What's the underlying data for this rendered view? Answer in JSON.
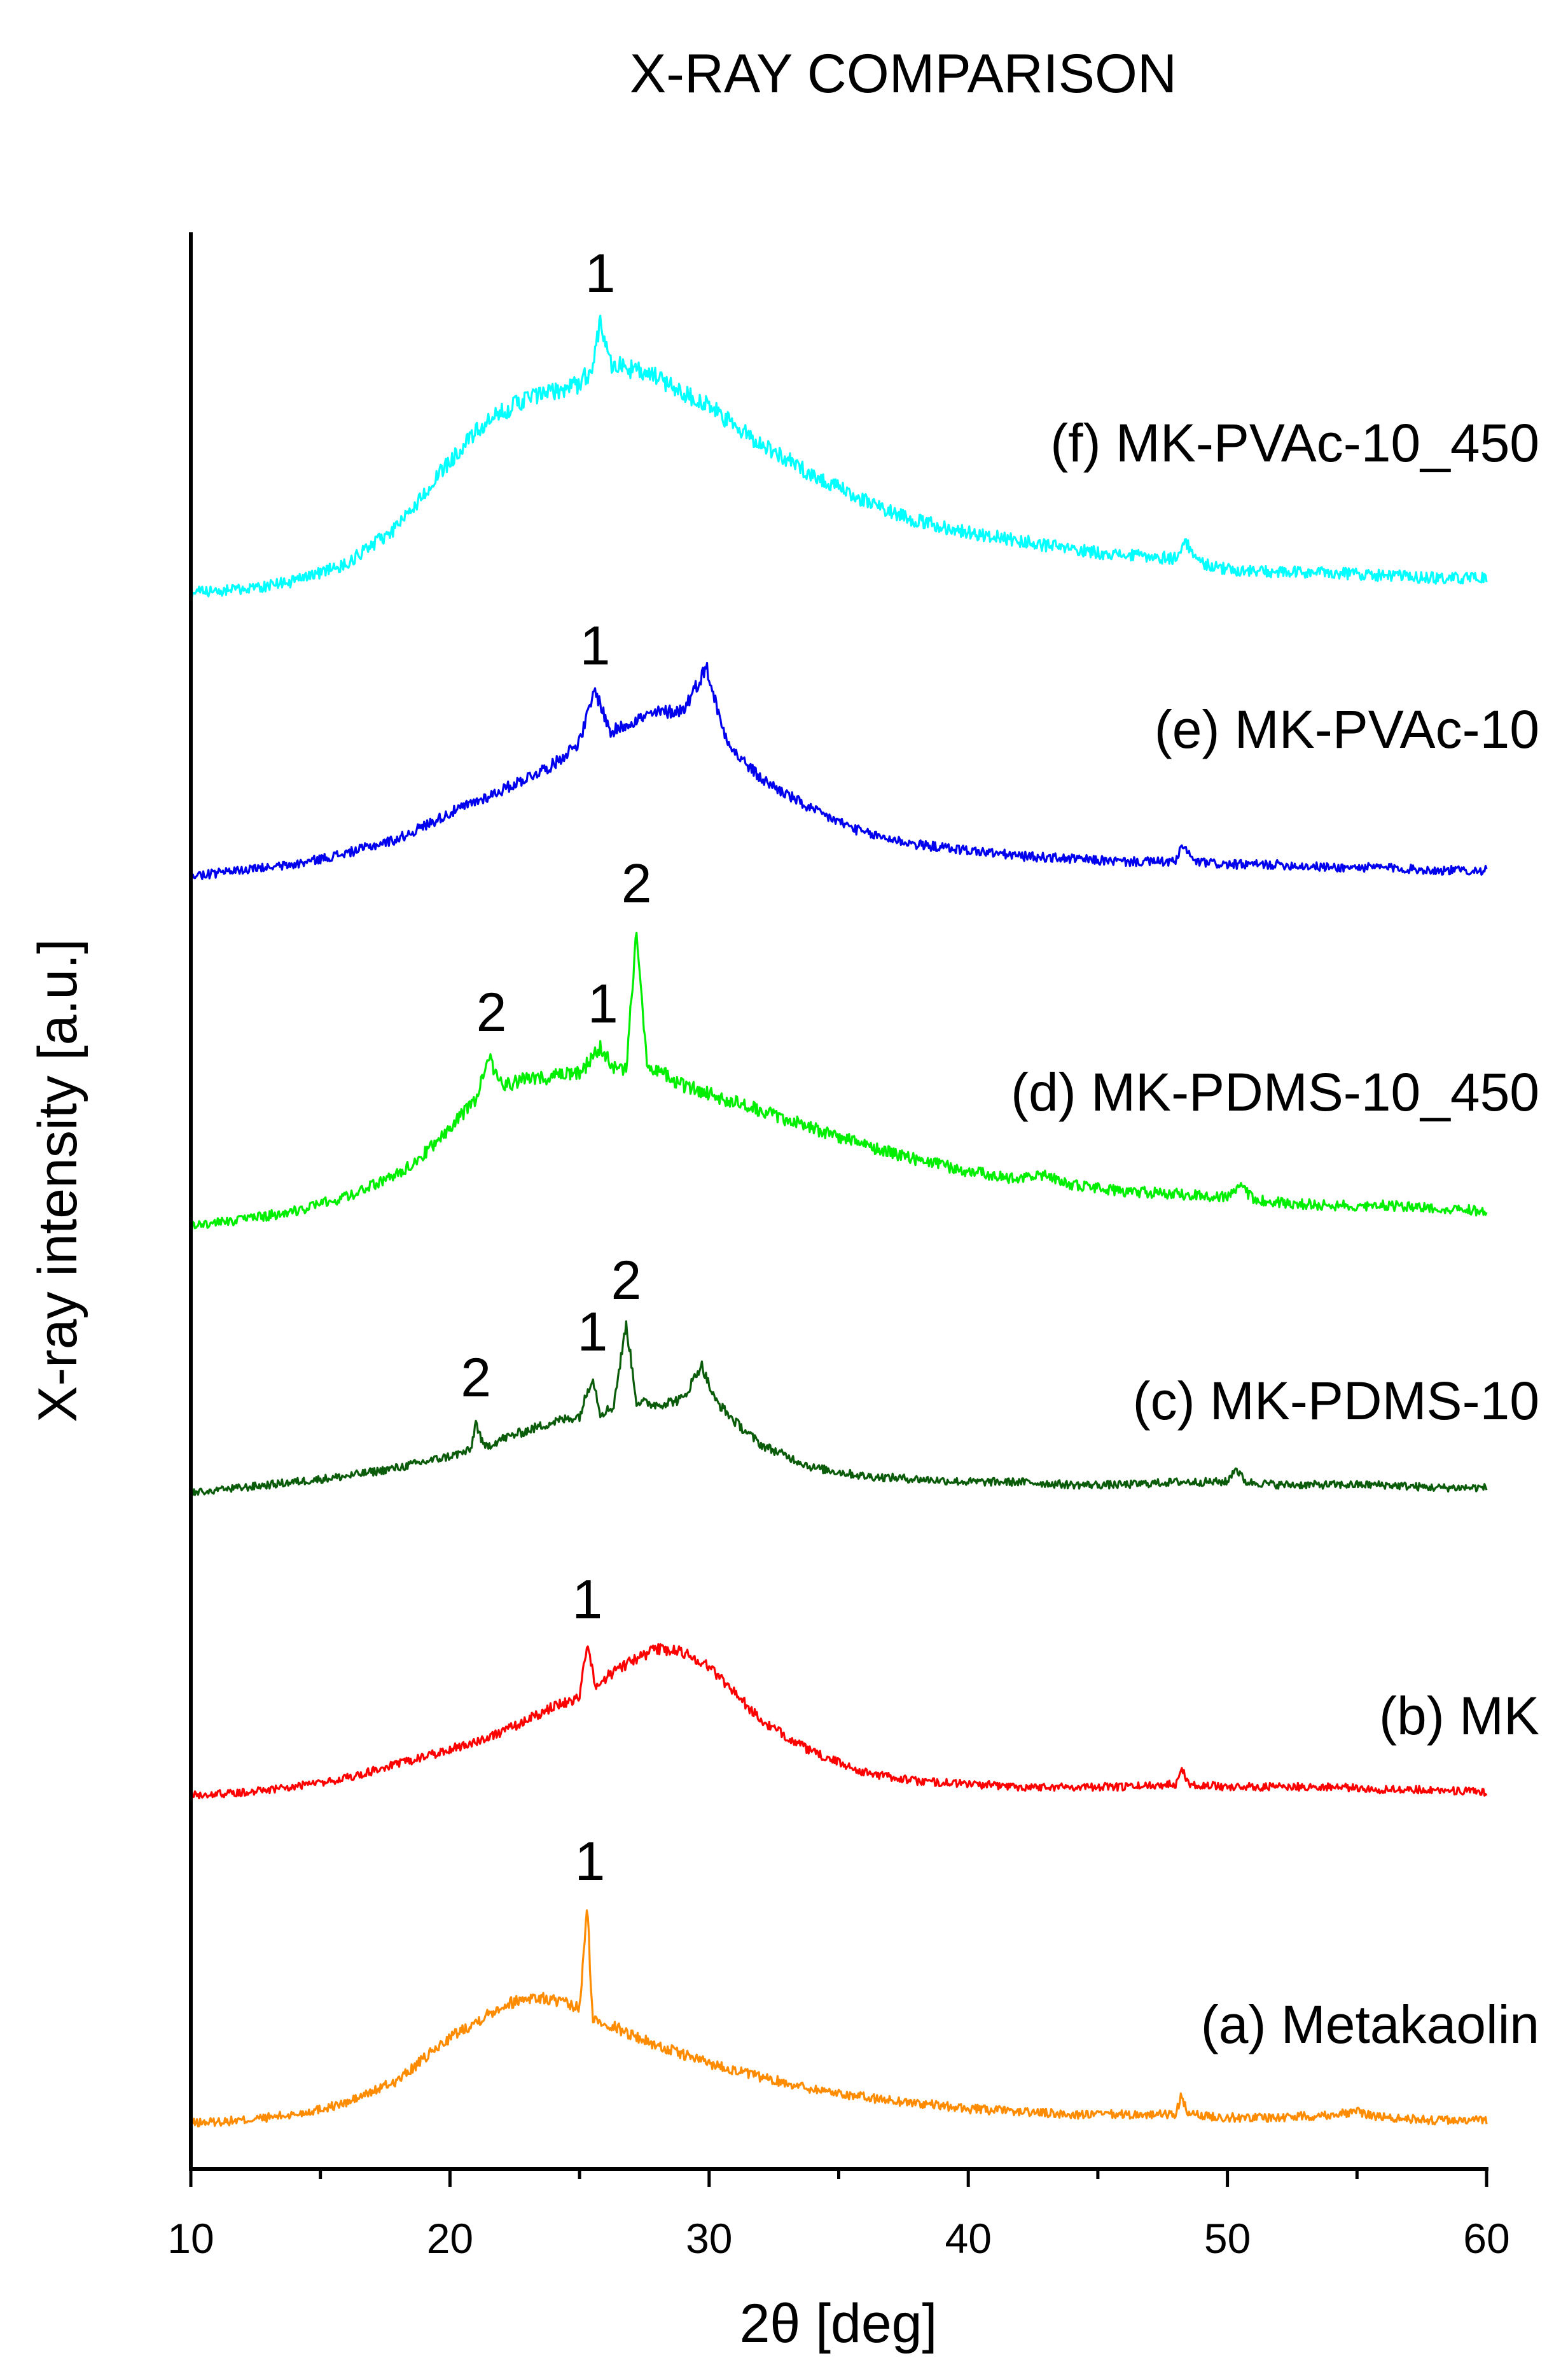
{
  "chart_data": {
    "type": "line",
    "title": "X-RAY COMPARISON",
    "xlabel": "2θ [deg]",
    "ylabel": "X-ray intensity [a.u.]",
    "xlim": [
      10,
      60
    ],
    "xticks": [
      "10",
      "20",
      "30",
      "40",
      "50",
      "60"
    ],
    "yticks_shown": false,
    "series": [
      {
        "name": "(a) Metakaolin",
        "color": "#ff8c00",
        "offset": 0,
        "x": [
          10,
          12,
          14,
          16,
          18,
          20,
          22,
          23,
          24,
          25,
          25.3,
          25.5,
          26,
          27,
          28,
          30,
          32,
          34,
          36,
          38,
          40,
          42,
          44,
          46,
          48,
          48.2,
          48.5,
          50,
          52,
          54,
          55,
          56,
          58,
          60
        ],
        "y": [
          0.02,
          0.03,
          0.05,
          0.09,
          0.17,
          0.32,
          0.43,
          0.46,
          0.45,
          0.42,
          0.78,
          0.38,
          0.37,
          0.33,
          0.29,
          0.23,
          0.18,
          0.14,
          0.11,
          0.09,
          0.07,
          0.06,
          0.05,
          0.05,
          0.05,
          0.11,
          0.05,
          0.04,
          0.04,
          0.05,
          0.06,
          0.04,
          0.03,
          0.03
        ],
        "noise": 0.025
      },
      {
        "name": "(b) MK",
        "color": "#ff0000",
        "offset": 1,
        "x": [
          10,
          12,
          14,
          16,
          18,
          20,
          22,
          24,
          25,
          25.3,
          25.6,
          26,
          27,
          28,
          29,
          30,
          31,
          32,
          34,
          36,
          38,
          40,
          42,
          44,
          46,
          48,
          48.2,
          48.5,
          50,
          52,
          54,
          56,
          58,
          60
        ],
        "y": [
          0.02,
          0.03,
          0.05,
          0.08,
          0.13,
          0.18,
          0.24,
          0.33,
          0.36,
          0.55,
          0.4,
          0.43,
          0.49,
          0.53,
          0.52,
          0.47,
          0.38,
          0.28,
          0.17,
          0.1,
          0.07,
          0.06,
          0.05,
          0.05,
          0.05,
          0.06,
          0.12,
          0.06,
          0.05,
          0.05,
          0.05,
          0.04,
          0.04,
          0.03
        ],
        "noise": 0.022
      },
      {
        "name": "(c) MK-PDMS-10",
        "color": "#0a5c0a",
        "offset": 2,
        "x": [
          10,
          12,
          14,
          16,
          18,
          20,
          20.8,
          21,
          21.3,
          22,
          24,
          25,
          25.5,
          25.8,
          26.3,
          26.8,
          27.2,
          28,
          29,
          29.7,
          30.2,
          31,
          32,
          34,
          36,
          38,
          40,
          42,
          44,
          46,
          48,
          50,
          50.3,
          50.7,
          52,
          54,
          56,
          58,
          60
        ],
        "y": [
          0.03,
          0.05,
          0.07,
          0.09,
          0.12,
          0.16,
          0.18,
          0.28,
          0.19,
          0.22,
          0.28,
          0.3,
          0.44,
          0.31,
          0.33,
          0.62,
          0.35,
          0.34,
          0.36,
          0.48,
          0.36,
          0.28,
          0.2,
          0.12,
          0.09,
          0.08,
          0.07,
          0.07,
          0.06,
          0.06,
          0.07,
          0.07,
          0.12,
          0.07,
          0.06,
          0.06,
          0.06,
          0.05,
          0.05
        ],
        "noise": 0.022
      },
      {
        "name": "(d) MK-PDMS-10_450",
        "color": "#00ee00",
        "offset": 3,
        "x": [
          10,
          12,
          14,
          16,
          18,
          19,
          20,
          21,
          21.5,
          22,
          23,
          24,
          25,
          25.8,
          26.3,
          26.8,
          27.2,
          27.6,
          28,
          29,
          30,
          32,
          34,
          36,
          38,
          40,
          42,
          43,
          44,
          46,
          48,
          50,
          50.5,
          51,
          52,
          54,
          56,
          58,
          60
        ],
        "y": [
          0.01,
          0.03,
          0.06,
          0.11,
          0.19,
          0.26,
          0.35,
          0.45,
          0.6,
          0.5,
          0.52,
          0.53,
          0.54,
          0.63,
          0.56,
          0.55,
          1.05,
          0.58,
          0.55,
          0.5,
          0.47,
          0.41,
          0.35,
          0.29,
          0.24,
          0.2,
          0.17,
          0.19,
          0.15,
          0.13,
          0.12,
          0.11,
          0.15,
          0.1,
          0.09,
          0.08,
          0.08,
          0.07,
          0.06
        ],
        "noise": 0.028
      },
      {
        "name": "(e) MK-PVAc-10",
        "color": "#0000ee",
        "offset": 4,
        "x": [
          10,
          12,
          14,
          16,
          18,
          20,
          22,
          24,
          25,
          25.6,
          26.2,
          27,
          28,
          29,
          29.9,
          30.5,
          31,
          32,
          34,
          36,
          38,
          40,
          42,
          44,
          46,
          48,
          48.3,
          48.7,
          50,
          52,
          54,
          56,
          58,
          60
        ],
        "y": [
          0.03,
          0.05,
          0.07,
          0.11,
          0.16,
          0.25,
          0.33,
          0.42,
          0.5,
          0.68,
          0.53,
          0.57,
          0.6,
          0.61,
          0.76,
          0.55,
          0.46,
          0.37,
          0.26,
          0.18,
          0.14,
          0.12,
          0.1,
          0.09,
          0.08,
          0.08,
          0.14,
          0.08,
          0.07,
          0.07,
          0.06,
          0.06,
          0.05,
          0.05
        ],
        "noise": 0.025
      },
      {
        "name": "(f) MK-PVAc-10_450",
        "color": "#00ffff",
        "offset": 5,
        "x": [
          10,
          12,
          14,
          16,
          18,
          20,
          21,
          22,
          23,
          24,
          25,
          25.5,
          25.8,
          26.2,
          27,
          28,
          29,
          30,
          31,
          32,
          34,
          36,
          38,
          40,
          42,
          44,
          46,
          48,
          48.4,
          48.8,
          50,
          52,
          54,
          56,
          58,
          60
        ],
        "y": [
          0.02,
          0.03,
          0.06,
          0.12,
          0.25,
          0.48,
          0.58,
          0.65,
          0.7,
          0.72,
          0.75,
          0.8,
          0.98,
          0.82,
          0.8,
          0.77,
          0.72,
          0.67,
          0.6,
          0.54,
          0.43,
          0.34,
          0.27,
          0.23,
          0.2,
          0.17,
          0.15,
          0.14,
          0.2,
          0.13,
          0.1,
          0.09,
          0.09,
          0.08,
          0.07,
          0.07
        ],
        "noise": 0.032
      }
    ],
    "annotations": [
      {
        "text": "1",
        "series": "(a) Metakaolin",
        "x": 25.4,
        "y": 0.78
      },
      {
        "text": "1",
        "series": "(b) MK",
        "x": 25.3,
        "y": 0.55
      },
      {
        "text": "2",
        "series": "(c) MK-PDMS-10",
        "x": 21.0,
        "y": 0.28
      },
      {
        "text": "1",
        "series": "(c) MK-PDMS-10",
        "x": 25.5,
        "y": 0.44
      },
      {
        "text": "2",
        "series": "(c) MK-PDMS-10",
        "x": 26.8,
        "y": 0.62
      },
      {
        "text": "2",
        "series": "(d) MK-PDMS-10_450",
        "x": 21.6,
        "y": 0.6
      },
      {
        "text": "1",
        "series": "(d) MK-PDMS-10_450",
        "x": 25.9,
        "y": 0.63
      },
      {
        "text": "2",
        "series": "(d) MK-PDMS-10_450",
        "x": 27.2,
        "y": 1.05
      },
      {
        "text": "1",
        "series": "(e) MK-PVAc-10",
        "x": 25.6,
        "y": 0.68
      },
      {
        "text": "1",
        "series": "(f) MK-PVAc-10_450",
        "x": 25.8,
        "y": 0.98
      }
    ]
  }
}
